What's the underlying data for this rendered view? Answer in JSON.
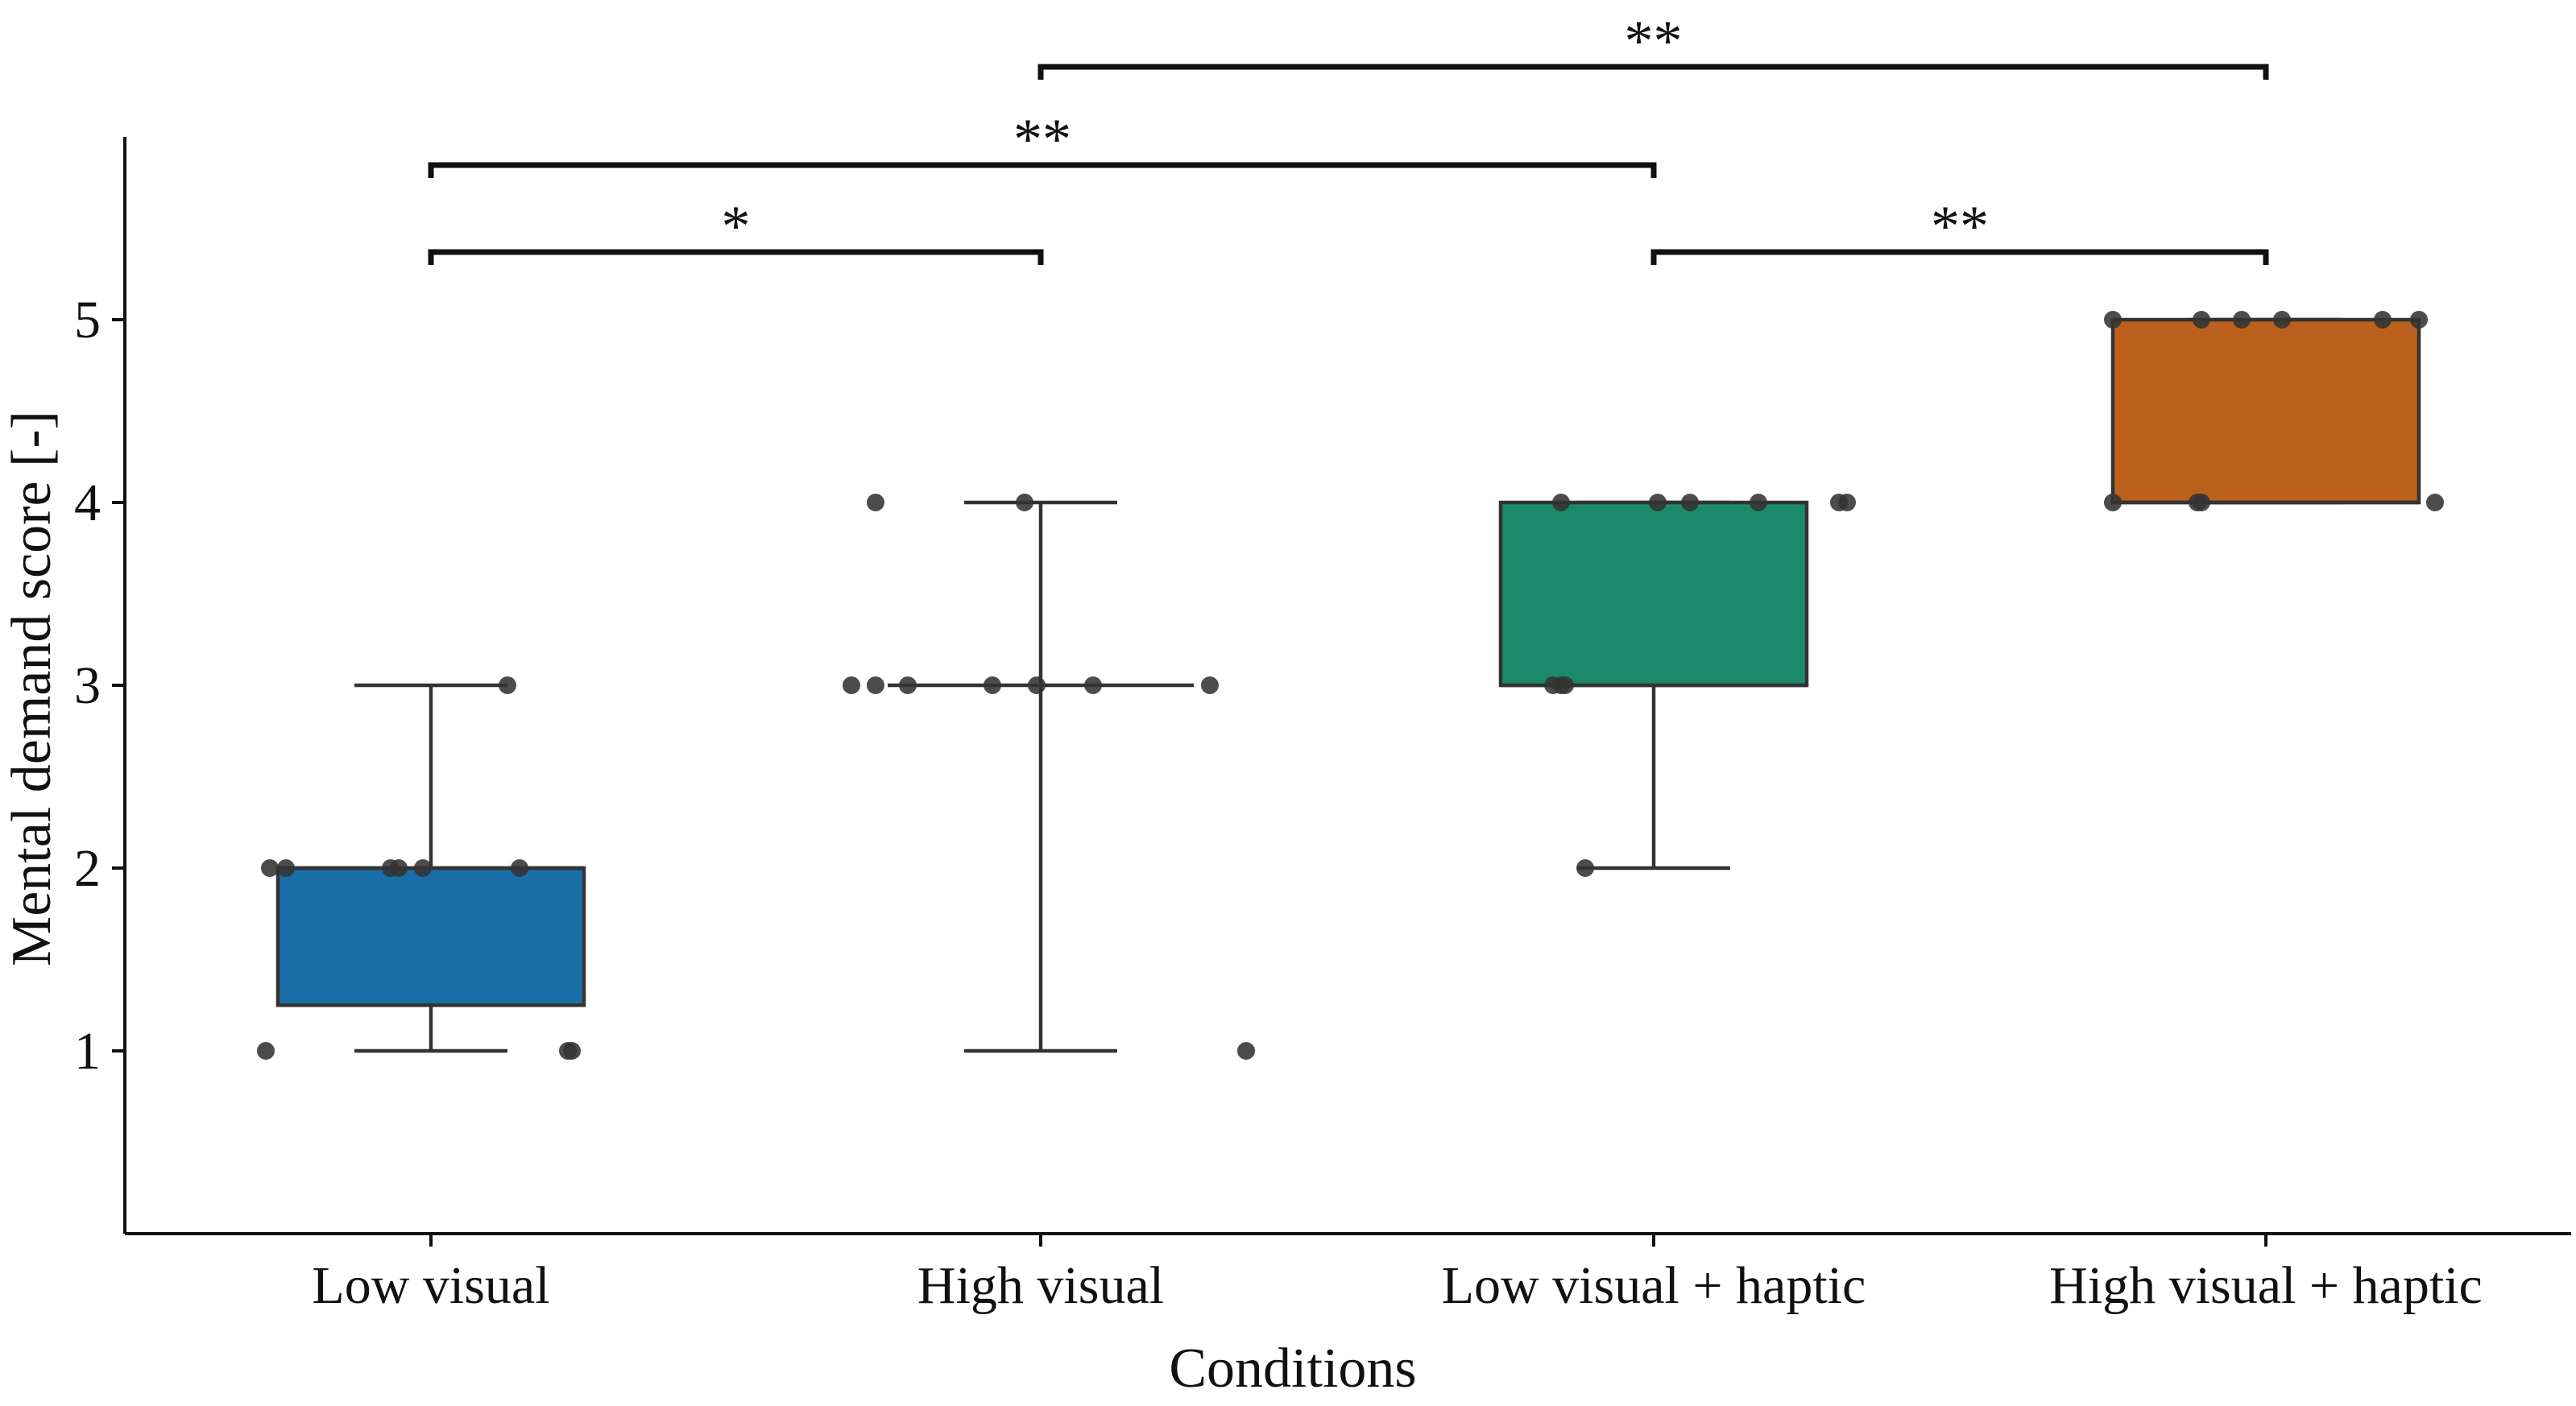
{
  "chart_data": {
    "type": "box",
    "title": "",
    "xlabel": "Conditions",
    "ylabel": "Mental demand score [-]",
    "ylim": [
      0,
      6
    ],
    "yticks": [
      1,
      2,
      3,
      4,
      5
    ],
    "grid": false,
    "legend": "none",
    "categories": [
      "Low visual",
      "High visual",
      "Low visual + haptic",
      "High visual + haptic"
    ],
    "series": [
      {
        "category": "Low visual",
        "color": "#1a6ea8",
        "has_box": true,
        "q1": 1.25,
        "median": 2,
        "q3": 2,
        "whisker_low": 1,
        "whisker_high": 3,
        "points": [
          1,
          1,
          1,
          2,
          2,
          2,
          2,
          2,
          2,
          3
        ]
      },
      {
        "category": "High visual",
        "color": "#ffffff",
        "has_box": false,
        "q1": 3,
        "median": 3,
        "q3": 3,
        "whisker_low": 1,
        "whisker_high": 4,
        "points": [
          4,
          4,
          3,
          3,
          3,
          3,
          3,
          3,
          3,
          1
        ]
      },
      {
        "category": "Low visual + haptic",
        "color": "#1b8a6b",
        "has_box": true,
        "q1": 3,
        "median": 3,
        "q3": 4,
        "whisker_low": 2,
        "whisker_high": 4,
        "points": [
          2,
          3,
          3,
          3,
          4,
          4,
          4,
          4,
          4,
          4
        ]
      },
      {
        "category": "High visual + haptic",
        "color": "#bb611d",
        "has_box": true,
        "q1": 4,
        "median": 4,
        "q3": 5,
        "whisker_low": 4,
        "whisker_high": 5,
        "points": [
          5,
          5,
          5,
          5,
          5,
          5,
          4,
          4,
          4,
          4
        ]
      }
    ],
    "significance": [
      {
        "from": "High visual",
        "to": "High visual + haptic",
        "label": "**",
        "level": 4
      },
      {
        "from": "Low visual",
        "to": "Low visual + haptic",
        "label": "**",
        "level": 3
      },
      {
        "from": "Low visual",
        "to": "High visual",
        "label": "*",
        "level": 2
      },
      {
        "from": "Low visual + haptic",
        "to": "High visual + haptic",
        "label": "**",
        "level": 2
      }
    ]
  }
}
